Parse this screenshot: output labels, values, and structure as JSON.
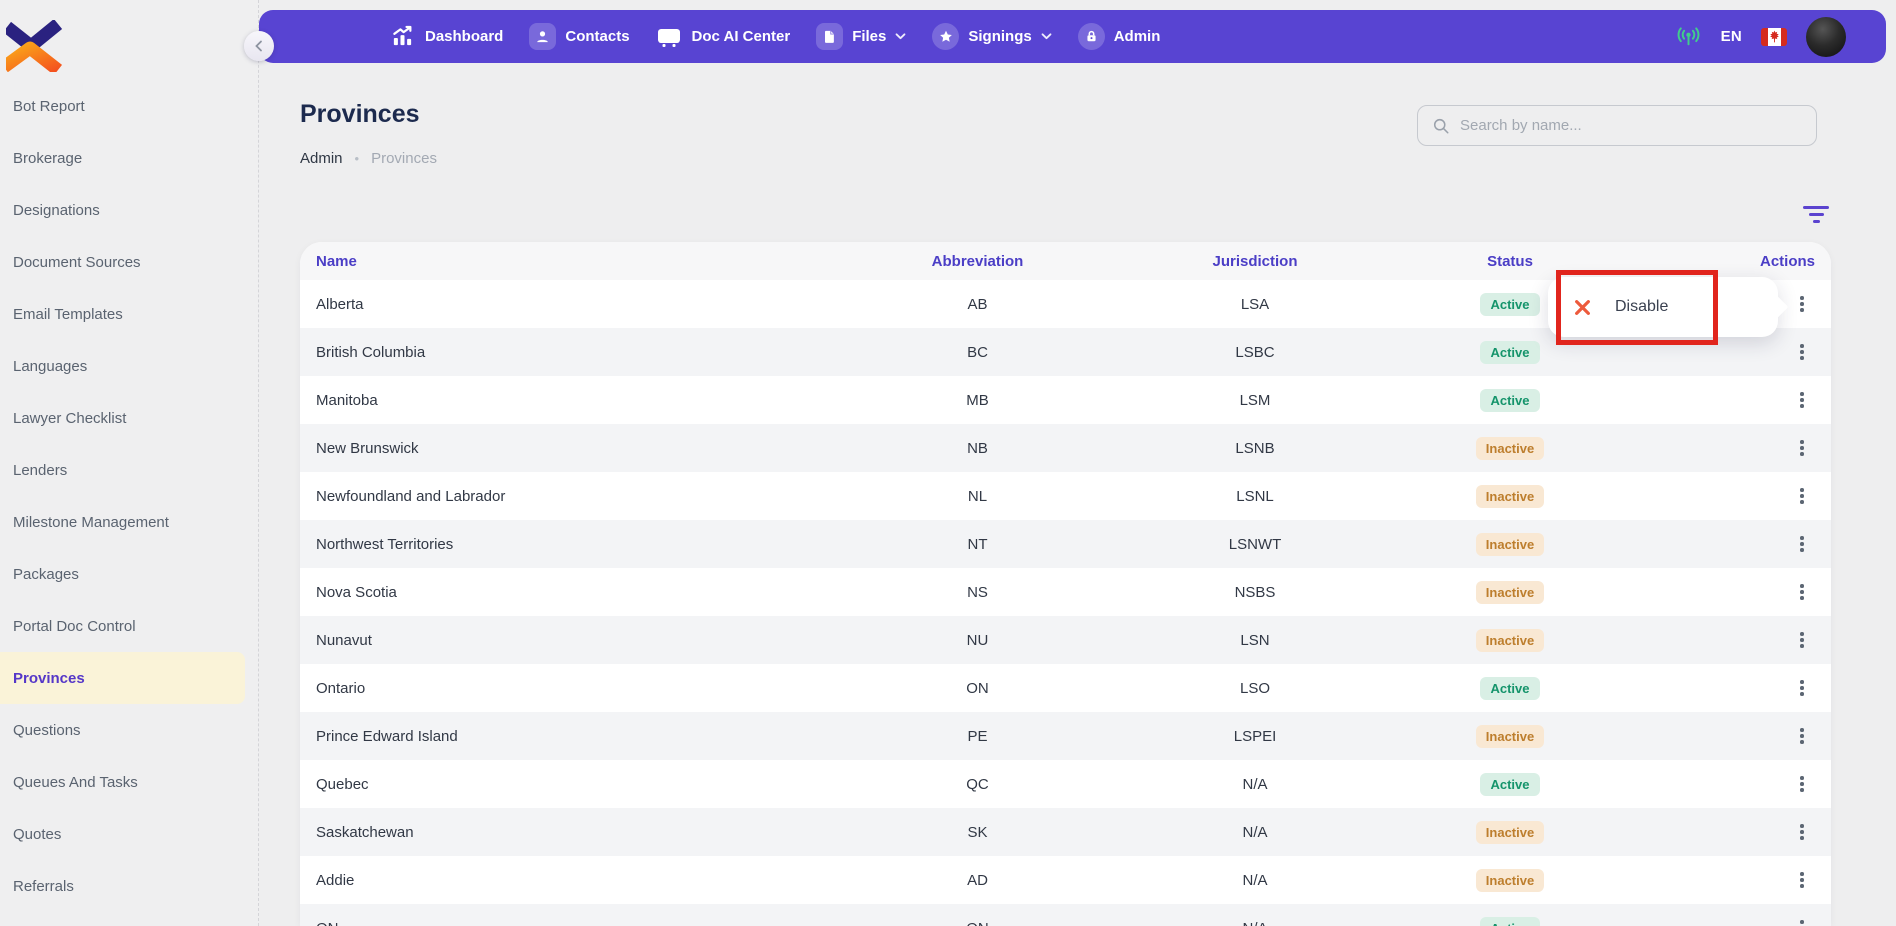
{
  "brand": {
    "logo": "x-chevrons-logo"
  },
  "sidebar": {
    "items": [
      {
        "label": "Bot Report",
        "active": false
      },
      {
        "label": "Brokerage",
        "active": false
      },
      {
        "label": "Designations",
        "active": false
      },
      {
        "label": "Document Sources",
        "active": false
      },
      {
        "label": "Email Templates",
        "active": false
      },
      {
        "label": "Languages",
        "active": false
      },
      {
        "label": "Lawyer Checklist",
        "active": false
      },
      {
        "label": "Lenders",
        "active": false
      },
      {
        "label": "Milestone Management",
        "active": false
      },
      {
        "label": "Packages",
        "active": false
      },
      {
        "label": "Portal Doc Control",
        "active": false
      },
      {
        "label": "Provinces",
        "active": true
      },
      {
        "label": "Questions",
        "active": false
      },
      {
        "label": "Queues And Tasks",
        "active": false
      },
      {
        "label": "Quotes",
        "active": false
      },
      {
        "label": "Referrals",
        "active": false
      }
    ]
  },
  "navbar": {
    "items": [
      {
        "label": "Dashboard",
        "icon": "dashboard-icon",
        "chip": "none",
        "chevron": false
      },
      {
        "label": "Contacts",
        "icon": "contacts-icon",
        "chip": "square",
        "chevron": false
      },
      {
        "label": "Doc AI Center",
        "icon": "doc-ai-icon",
        "chip": "none",
        "chevron": false
      },
      {
        "label": "Files",
        "icon": "files-icon",
        "chip": "square",
        "chevron": true
      },
      {
        "label": "Signings",
        "icon": "signings-icon",
        "chip": "circle",
        "chevron": true
      },
      {
        "label": "Admin",
        "icon": "admin-lock-icon",
        "chip": "circle",
        "chevron": false
      }
    ],
    "status_icon": "broadcast-icon",
    "language": "EN",
    "flag": "canada-flag"
  },
  "header": {
    "title": "Provinces",
    "breadcrumb": {
      "current": "Admin",
      "separator": "•",
      "next": "Provinces"
    },
    "search_placeholder": "Search by name..."
  },
  "table": {
    "columns": [
      "Name",
      "Abbreviation",
      "Jurisdiction",
      "Status",
      "Actions"
    ],
    "rows": [
      {
        "name": "Alberta",
        "abbreviation": "AB",
        "jurisdiction": "LSA",
        "status": "Active"
      },
      {
        "name": "British Columbia",
        "abbreviation": "BC",
        "jurisdiction": "LSBC",
        "status": "Active"
      },
      {
        "name": "Manitoba",
        "abbreviation": "MB",
        "jurisdiction": "LSM",
        "status": "Active"
      },
      {
        "name": "New Brunswick",
        "abbreviation": "NB",
        "jurisdiction": "LSNB",
        "status": "Inactive"
      },
      {
        "name": "Newfoundland and Labrador",
        "abbreviation": "NL",
        "jurisdiction": "LSNL",
        "status": "Inactive"
      },
      {
        "name": "Northwest Territories",
        "abbreviation": "NT",
        "jurisdiction": "LSNWT",
        "status": "Inactive"
      },
      {
        "name": "Nova Scotia",
        "abbreviation": "NS",
        "jurisdiction": "NSBS",
        "status": "Inactive"
      },
      {
        "name": "Nunavut",
        "abbreviation": "NU",
        "jurisdiction": "LSN",
        "status": "Inactive"
      },
      {
        "name": "Ontario",
        "abbreviation": "ON",
        "jurisdiction": "LSO",
        "status": "Active"
      },
      {
        "name": "Prince Edward Island",
        "abbreviation": "PE",
        "jurisdiction": "LSPEI",
        "status": "Inactive"
      },
      {
        "name": "Quebec",
        "abbreviation": "QC",
        "jurisdiction": "N/A",
        "status": "Active"
      },
      {
        "name": "Saskatchewan",
        "abbreviation": "SK",
        "jurisdiction": "N/A",
        "status": "Inactive"
      },
      {
        "name": "Addie",
        "abbreviation": "AD",
        "jurisdiction": "N/A",
        "status": "Inactive"
      },
      {
        "name": "ON",
        "abbreviation": "ON",
        "jurisdiction": "N/A",
        "status": "Active"
      }
    ]
  },
  "popup": {
    "label": "Disable",
    "icon": "x-close-icon"
  },
  "colors": {
    "navbar_bg": "#5844d2",
    "accent_purple": "#5b43cf",
    "active_item_bg": "#faf3d8",
    "badge_active_bg": "#d9efe5",
    "badge_active_text": "#15946b",
    "badge_inactive_bg": "#f9e8d3",
    "badge_inactive_text": "#bd7e2d",
    "annotation_red": "#e1251d",
    "broadcast_green": "#41cd8c"
  }
}
